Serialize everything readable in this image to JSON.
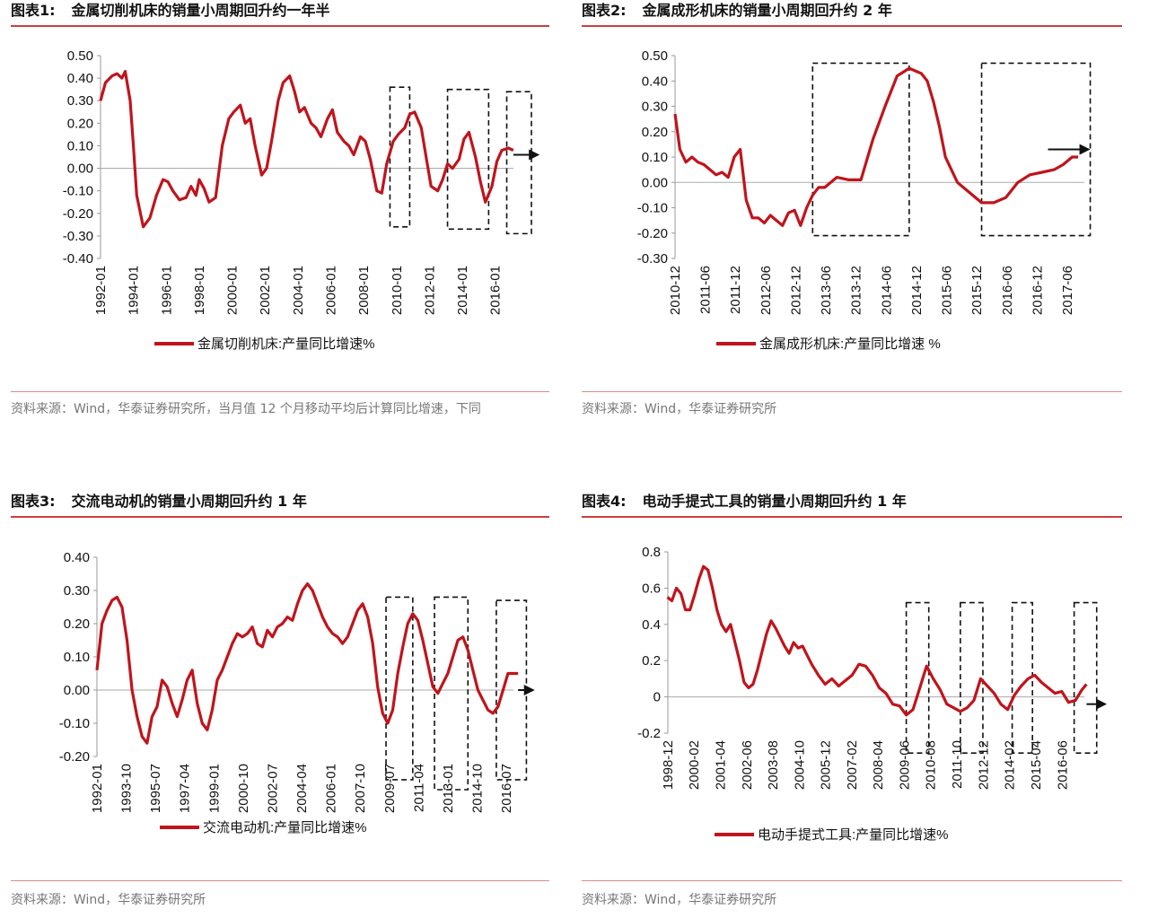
{
  "panels": [
    {
      "title_num": "图表1:",
      "title_text": "金属切削机床的销量小周期回升约一年半",
      "source": "资料来源：Wind，华泰证券研究所，当月值 12 个月移动平均后计算同比增速，下同",
      "chart_data": {
        "type": "line",
        "series": [
          {
            "name": "金属切削机床:产量同比增速%",
            "color": "#c0141c",
            "x": [
              1992.0,
              1992.3,
              1992.7,
              1993.0,
              1993.3,
              1993.5,
              1993.8,
              1994.0,
              1994.2,
              1994.6,
              1995.0,
              1995.4,
              1995.8,
              1996.1,
              1996.4,
              1996.8,
              1997.2,
              1997.5,
              1997.8,
              1998.0,
              1998.3,
              1998.6,
              1999.0,
              1999.4,
              1999.8,
              2000.1,
              2000.5,
              2000.8,
              2001.1,
              2001.4,
              2001.8,
              2002.1,
              2002.4,
              2002.8,
              2003.1,
              2003.5,
              2003.8,
              2004.1,
              2004.4,
              2004.8,
              2005.1,
              2005.4,
              2005.8,
              2006.1,
              2006.4,
              2006.8,
              2007.1,
              2007.4,
              2007.8,
              2008.1,
              2008.4,
              2008.8,
              2009.1,
              2009.4,
              2009.8,
              2010.1,
              2010.5,
              2010.8,
              2011.1,
              2011.5,
              2011.8,
              2012.1,
              2012.5,
              2012.8,
              2013.1,
              2013.4,
              2013.8,
              2014.1,
              2014.4,
              2014.8,
              2015.1,
              2015.4,
              2015.8,
              2016.1,
              2016.4,
              2016.8,
              2017.1
            ],
            "values": [
              0.3,
              0.38,
              0.41,
              0.42,
              0.4,
              0.43,
              0.3,
              0.1,
              -0.12,
              -0.26,
              -0.22,
              -0.12,
              -0.05,
              -0.06,
              -0.1,
              -0.14,
              -0.13,
              -0.08,
              -0.12,
              -0.05,
              -0.09,
              -0.15,
              -0.13,
              0.1,
              0.22,
              0.25,
              0.28,
              0.2,
              0.22,
              0.1,
              -0.03,
              0.0,
              0.12,
              0.3,
              0.38,
              0.41,
              0.34,
              0.25,
              0.27,
              0.2,
              0.18,
              0.14,
              0.22,
              0.26,
              0.16,
              0.12,
              0.1,
              0.06,
              0.14,
              0.12,
              0.04,
              -0.1,
              -0.11,
              0.02,
              0.12,
              0.15,
              0.18,
              0.24,
              0.25,
              0.18,
              0.05,
              -0.08,
              -0.1,
              -0.05,
              0.02,
              0.0,
              0.04,
              0.13,
              0.16,
              0.05,
              -0.06,
              -0.15,
              -0.08,
              0.03,
              0.08,
              0.09,
              0.08
            ]
          }
        ],
        "x_ticks": [
          "1992-01",
          "1994-01",
          "1996-01",
          "1998-01",
          "2000-01",
          "2002-01",
          "2004-01",
          "2006-01",
          "2008-01",
          "2010-01",
          "2012-01",
          "2014-01",
          "2016-01"
        ],
        "x_tick_values": [
          1992,
          1994,
          1996,
          1998,
          2000,
          2002,
          2004,
          2006,
          2008,
          2010,
          2012,
          2014,
          2016
        ],
        "xlim": [
          1992.0,
          2018.2
        ],
        "y_ticks": [
          "0.50",
          "0.40",
          "0.30",
          "0.20",
          "0.10",
          "0.00",
          "-0.10",
          "-0.20",
          "-0.30",
          "-0.40"
        ],
        "ylim": [
          -0.4,
          0.5
        ],
        "boxes": [
          [
            2009.6,
            2010.8,
            -0.26,
            0.36
          ],
          [
            2013.1,
            2015.6,
            -0.27,
            0.35
          ],
          [
            2016.7,
            2018.2,
            -0.29,
            0.34
          ]
        ],
        "arrow": [
          2017.1,
          2018.7,
          0.06
        ],
        "legend": "top-below-axis"
      }
    },
    {
      "title_num": "图表2:",
      "title_text": "金属成形机床的销量小周期回升约 2 年",
      "source": "资料来源：Wind，华泰证券研究所",
      "chart_data": {
        "type": "line",
        "series": [
          {
            "name": "金属成形机床:产量同比增速  %",
            "color": "#c0141c",
            "x": [
              2010.92,
              2011.0,
              2011.1,
              2011.2,
              2011.3,
              2011.4,
              2011.5,
              2011.6,
              2011.7,
              2011.8,
              2011.9,
              2012.0,
              2012.1,
              2012.2,
              2012.3,
              2012.4,
              2012.5,
              2012.6,
              2012.7,
              2012.8,
              2012.9,
              2013.0,
              2013.1,
              2013.2,
              2013.3,
              2013.4,
              2013.6,
              2013.8,
              2014.0,
              2014.2,
              2014.4,
              2014.6,
              2014.8,
              2014.9,
              2015.0,
              2015.1,
              2015.2,
              2015.3,
              2015.4,
              2015.6,
              2015.8,
              2016.0,
              2016.2,
              2016.4,
              2016.6,
              2016.8,
              2017.0,
              2017.2,
              2017.35,
              2017.5,
              2017.6
            ],
            "values": [
              0.27,
              0.13,
              0.08,
              0.1,
              0.08,
              0.07,
              0.05,
              0.03,
              0.04,
              0.02,
              0.1,
              0.13,
              -0.07,
              -0.14,
              -0.14,
              -0.16,
              -0.13,
              -0.15,
              -0.17,
              -0.12,
              -0.11,
              -0.17,
              -0.1,
              -0.05,
              -0.02,
              -0.02,
              0.02,
              0.01,
              0.01,
              0.17,
              0.3,
              0.42,
              0.45,
              0.44,
              0.43,
              0.4,
              0.32,
              0.22,
              0.1,
              0.0,
              -0.04,
              -0.08,
              -0.08,
              -0.06,
              0.0,
              0.03,
              0.04,
              0.05,
              0.07,
              0.1,
              0.1
            ]
          }
        ],
        "x_ticks": [
          "2010-12",
          "2011-06",
          "2011-12",
          "2012-06",
          "2012-12",
          "2013-06",
          "2013-12",
          "2014-06",
          "2014-12",
          "2015-06",
          "2015-12",
          "2016-06",
          "2016-12",
          "2017-06"
        ],
        "x_tick_values": [
          2010.92,
          2011.42,
          2011.92,
          2012.42,
          2012.92,
          2013.42,
          2013.92,
          2014.42,
          2014.92,
          2015.42,
          2015.92,
          2016.42,
          2016.92,
          2017.42
        ],
        "xlim": [
          2010.92,
          2018.0
        ],
        "y_ticks": [
          "0.50",
          "0.40",
          "0.30",
          "0.20",
          "0.10",
          "0.00",
          "-0.10",
          "-0.20",
          "-0.30"
        ],
        "ylim": [
          -0.3,
          0.5
        ],
        "boxes": [
          [
            2013.2,
            2014.8,
            -0.21,
            0.47
          ],
          [
            2016.0,
            2017.8,
            -0.21,
            0.47
          ]
        ],
        "arrow": [
          2017.1,
          2017.8,
          0.13
        ],
        "legend": "top-below-axis"
      }
    },
    {
      "title_num": "图表3:",
      "title_text": "交流电动机的销量小周期回升约 1 年",
      "source": "资料来源：Wind，华泰证券研究所",
      "chart_data": {
        "type": "line",
        "series": [
          {
            "name": "交流电动机:产量同比增速%",
            "color": "#c0141c",
            "x": [
              1992.0,
              1992.3,
              1992.6,
              1992.9,
              1993.2,
              1993.5,
              1993.8,
              1994.1,
              1994.4,
              1994.7,
              1995.0,
              1995.3,
              1995.6,
              1995.9,
              1996.2,
              1996.5,
              1996.8,
              1997.1,
              1997.4,
              1997.7,
              1998.0,
              1998.3,
              1998.6,
              1998.9,
              1999.2,
              1999.5,
              1999.8,
              2000.1,
              2000.4,
              2000.7,
              2001.0,
              2001.3,
              2001.6,
              2001.9,
              2002.2,
              2002.5,
              2002.8,
              2003.1,
              2003.4,
              2003.7,
              2004.0,
              2004.3,
              2004.6,
              2004.9,
              2005.2,
              2005.5,
              2005.8,
              2006.1,
              2006.4,
              2006.7,
              2007.0,
              2007.3,
              2007.6,
              2007.9,
              2008.2,
              2008.5,
              2008.8,
              2009.1,
              2009.4,
              2009.7,
              2010.0,
              2010.3,
              2010.6,
              2010.9,
              2011.2,
              2011.5,
              2011.8,
              2012.1,
              2012.4,
              2012.7,
              2013.0,
              2013.3,
              2013.6,
              2013.9,
              2014.2,
              2014.5,
              2014.8,
              2015.1,
              2015.4,
              2015.7,
              2016.0,
              2016.3,
              2016.6,
              2016.9,
              2017.2
            ],
            "values": [
              0.06,
              0.2,
              0.24,
              0.27,
              0.28,
              0.25,
              0.15,
              0.0,
              -0.08,
              -0.14,
              -0.16,
              -0.08,
              -0.05,
              0.03,
              0.01,
              -0.04,
              -0.08,
              -0.03,
              0.03,
              0.06,
              -0.04,
              -0.1,
              -0.12,
              -0.06,
              0.03,
              0.06,
              0.1,
              0.14,
              0.17,
              0.16,
              0.17,
              0.19,
              0.14,
              0.13,
              0.18,
              0.16,
              0.19,
              0.2,
              0.22,
              0.21,
              0.26,
              0.3,
              0.32,
              0.3,
              0.26,
              0.22,
              0.19,
              0.17,
              0.16,
              0.14,
              0.16,
              0.2,
              0.24,
              0.26,
              0.22,
              0.14,
              0.01,
              -0.07,
              -0.1,
              -0.06,
              0.05,
              0.13,
              0.2,
              0.23,
              0.21,
              0.15,
              0.08,
              0.01,
              -0.01,
              0.02,
              0.05,
              0.1,
              0.15,
              0.16,
              0.12,
              0.06,
              0.0,
              -0.03,
              -0.06,
              -0.07,
              -0.05,
              0.0,
              0.05,
              0.05,
              0.05
            ]
          }
        ],
        "x_ticks": [
          "1992-01",
          "1993-10",
          "1995-07",
          "1997-04",
          "1999-01",
          "2000-10",
          "2002-07",
          "2004-04",
          "2006-01",
          "2007-10",
          "2009-07",
          "2011-04",
          "2013-01",
          "2014-10",
          "2016-07"
        ],
        "x_tick_values": [
          1992.0,
          1993.75,
          1995.5,
          1997.25,
          1999.0,
          2000.75,
          2002.5,
          2004.25,
          2006.0,
          2007.75,
          2009.5,
          2011.25,
          2013.0,
          2014.75,
          2016.5
        ],
        "xlim": [
          1992.0,
          2018.0
        ],
        "y_ticks": [
          "0.40",
          "0.30",
          "0.20",
          "0.10",
          "0.00",
          "-0.10",
          "-0.20"
        ],
        "ylim": [
          -0.2,
          0.4
        ],
        "boxes": [
          [
            2009.3,
            2010.9,
            -0.27,
            0.28
          ],
          [
            2012.2,
            2014.2,
            -0.3,
            0.28
          ],
          [
            2015.9,
            2017.7,
            -0.27,
            0.27
          ]
        ],
        "arrow": [
          2017.2,
          2018.2,
          0.0
        ],
        "legend": "top-below-axis"
      }
    },
    {
      "title_num": "图表4:",
      "title_text": "电动手提式工具的销量小周期回升约 1 年",
      "source": "资料来源：Wind，华泰证券研究所",
      "chart_data": {
        "type": "line",
        "series": [
          {
            "name": "电动手提式工具:产量同比增速%",
            "color": "#c0141c",
            "x": [
              1998.9,
              1999.1,
              1999.3,
              1999.5,
              1999.7,
              1999.9,
              2000.1,
              2000.3,
              2000.5,
              2000.7,
              2000.9,
              2001.1,
              2001.3,
              2001.5,
              2001.7,
              2001.9,
              2002.1,
              2002.3,
              2002.5,
              2002.7,
              2002.9,
              2003.1,
              2003.3,
              2003.5,
              2003.7,
              2003.9,
              2004.1,
              2004.3,
              2004.5,
              2004.7,
              2004.9,
              2005.1,
              2005.3,
              2005.6,
              2005.9,
              2006.2,
              2006.5,
              2006.8,
              2007.1,
              2007.4,
              2007.7,
              2008.0,
              2008.3,
              2008.6,
              2008.9,
              2009.2,
              2009.5,
              2009.8,
              2010.1,
              2010.4,
              2010.7,
              2011.0,
              2011.3,
              2011.6,
              2011.9,
              2012.2,
              2012.5,
              2012.8,
              2013.1,
              2013.4,
              2013.7,
              2014.0,
              2014.3,
              2014.6,
              2014.9,
              2015.2,
              2015.5,
              2015.8,
              2016.1,
              2016.4,
              2016.7,
              2017.0,
              2017.3,
              2017.5
            ],
            "values": [
              0.55,
              0.53,
              0.6,
              0.57,
              0.48,
              0.48,
              0.56,
              0.65,
              0.72,
              0.7,
              0.6,
              0.48,
              0.4,
              0.36,
              0.4,
              0.3,
              0.2,
              0.08,
              0.05,
              0.07,
              0.15,
              0.25,
              0.35,
              0.42,
              0.38,
              0.33,
              0.28,
              0.24,
              0.3,
              0.27,
              0.28,
              0.23,
              0.18,
              0.12,
              0.07,
              0.1,
              0.06,
              0.09,
              0.12,
              0.18,
              0.17,
              0.12,
              0.05,
              0.02,
              -0.04,
              -0.05,
              -0.1,
              -0.07,
              0.05,
              0.17,
              0.1,
              0.04,
              -0.04,
              -0.06,
              -0.08,
              -0.06,
              -0.02,
              0.1,
              0.06,
              0.02,
              -0.04,
              -0.07,
              0.01,
              0.06,
              0.1,
              0.12,
              0.08,
              0.05,
              0.02,
              0.03,
              -0.03,
              -0.02,
              0.04,
              0.07
            ]
          }
        ],
        "x_ticks": [
          "1998-12",
          "2000-02",
          "2001-04",
          "2002-06",
          "2003-08",
          "2004-10",
          "2005-12",
          "2007-02",
          "2008-04",
          "2009-06",
          "2010-08",
          "2011-10",
          "2012-12",
          "2014-02",
          "2015-04",
          "2016-06"
        ],
        "x_tick_values": [
          1998.92,
          2000.08,
          2001.25,
          2002.42,
          2003.58,
          2004.75,
          2005.92,
          2007.08,
          2008.25,
          2009.42,
          2010.58,
          2011.75,
          2012.92,
          2014.08,
          2015.25,
          2016.42
        ],
        "xlim": [
          1998.92,
          2018.2
        ],
        "y_ticks": [
          "0.8",
          "0.6",
          "0.4",
          "0.2",
          "0",
          "-0.2"
        ],
        "ylim": [
          -0.2,
          0.8
        ],
        "boxes": [
          [
            2009.5,
            2010.5,
            -0.31,
            0.52
          ],
          [
            2011.9,
            2012.9,
            -0.31,
            0.52
          ],
          [
            2014.2,
            2015.1,
            -0.31,
            0.52
          ],
          [
            2016.95,
            2017.95,
            -0.31,
            0.52
          ]
        ],
        "arrow": [
          2017.5,
          2018.4,
          -0.04
        ],
        "legend": "top-below-axis"
      }
    }
  ]
}
